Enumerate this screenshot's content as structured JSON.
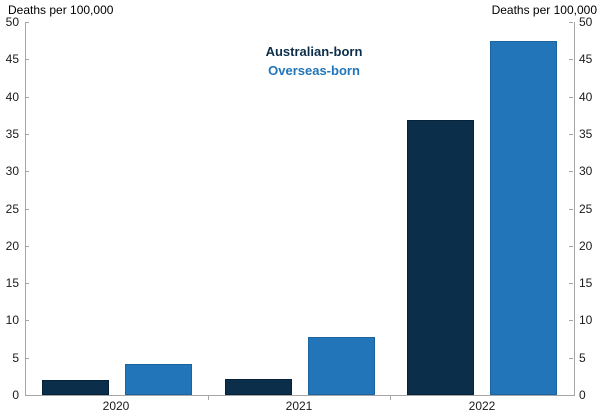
{
  "axis_titles": {
    "left": "Deaths per 100,000",
    "right": "Deaths per 100,000"
  },
  "chart_data": {
    "type": "bar",
    "title": "",
    "categories": [
      "2020",
      "2021",
      "2022"
    ],
    "series": [
      {
        "name": "Australian-born",
        "color": "#0b2e4a",
        "border_color": "#06223a",
        "values": [
          2.0,
          2.2,
          36.9
        ]
      },
      {
        "name": "Overseas-born",
        "color": "#2375b9",
        "border_color": "#1c649e",
        "values": [
          4.2,
          7.8,
          47.5
        ]
      }
    ],
    "ylabel_left": "Deaths per 100,000",
    "ylabel_right": "Deaths per 100,000",
    "ylim": [
      0,
      50
    ],
    "yticks": [
      0,
      5,
      10,
      15,
      20,
      25,
      30,
      35,
      40,
      45,
      50
    ],
    "grid": false,
    "legend_position": "top-center",
    "axis_color": "#a6a6a6"
  }
}
